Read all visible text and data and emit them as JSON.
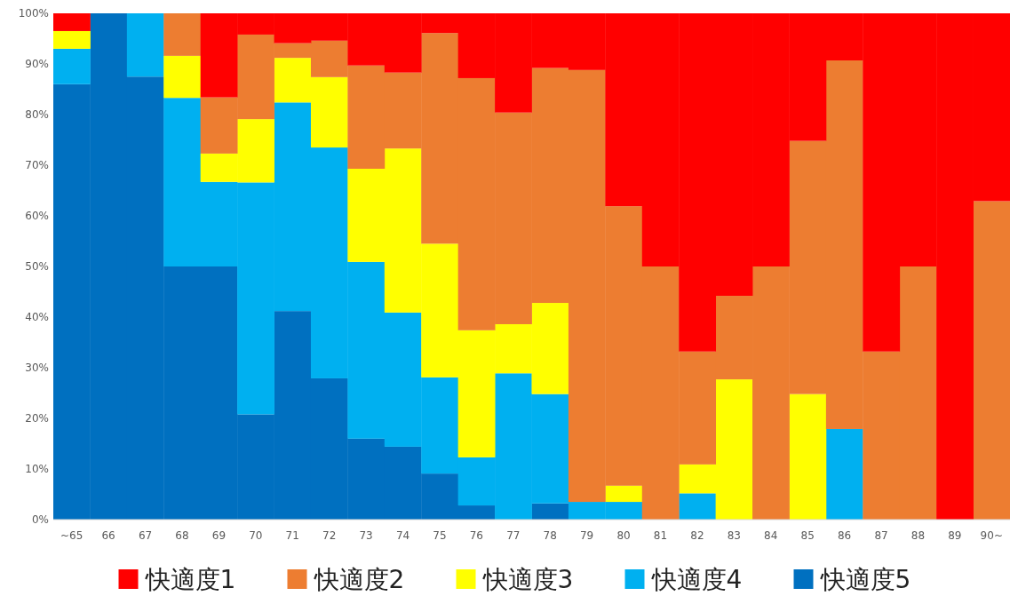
{
  "chart_data": {
    "type": "bar",
    "stacked": true,
    "legend": "bottom",
    "grid": false,
    "categories": [
      "~65",
      "66",
      "67",
      "68",
      "69",
      "70",
      "71",
      "72",
      "73",
      "74",
      "75",
      "76",
      "77",
      "78",
      "79",
      "80",
      "81",
      "82",
      "83",
      "84",
      "85",
      "86",
      "87",
      "88",
      "89",
      "90~"
    ],
    "ylim": [
      0,
      100
    ],
    "yticks": [
      {
        "value": 0,
        "label": "0%"
      },
      {
        "value": 10,
        "label": "10%"
      },
      {
        "value": 20,
        "label": "20%"
      },
      {
        "value": 30,
        "label": "30%"
      },
      {
        "value": 40,
        "label": "40%"
      },
      {
        "value": 50,
        "label": "50%"
      },
      {
        "value": 60,
        "label": "60%"
      },
      {
        "value": 70,
        "label": "70%"
      },
      {
        "value": 80,
        "label": "80%"
      },
      {
        "value": 90,
        "label": "90%"
      },
      {
        "value": 100,
        "label": "100%"
      }
    ],
    "series": [
      {
        "name": "快適度5",
        "color": "#0070c0",
        "values": [
          86,
          100,
          87.5,
          50,
          50,
          20.8,
          41.2,
          27.9,
          16,
          14.4,
          9.1,
          2.8,
          0,
          3.2,
          0,
          0,
          0,
          0,
          0,
          0,
          0,
          0,
          0,
          0,
          0,
          0
        ]
      },
      {
        "name": "快適度4",
        "color": "#00b0f0",
        "values": [
          7,
          0,
          12.5,
          33.3,
          16.7,
          45.8,
          41.2,
          45.6,
          34.9,
          26.5,
          19,
          9.5,
          28.9,
          21.6,
          3.5,
          3.5,
          0,
          5.2,
          0,
          0,
          0,
          17.9,
          0,
          0,
          0,
          0
        ]
      },
      {
        "name": "快適度3",
        "color": "#ffff00",
        "values": [
          3.5,
          0,
          0,
          8.3,
          5.6,
          12.5,
          8.8,
          13.9,
          18.4,
          32.4,
          26.4,
          25.1,
          9.7,
          18,
          0,
          3.2,
          0,
          5.7,
          27.7,
          0,
          24.8,
          0,
          0,
          0,
          0,
          0
        ]
      },
      {
        "name": "快適度2",
        "color": "#ed7d31",
        "values": [
          0,
          0,
          0,
          8.4,
          11.1,
          16.7,
          2.9,
          7.2,
          20.4,
          15,
          41.6,
          49.8,
          41.8,
          46.4,
          85.3,
          55.2,
          50,
          22.3,
          16.5,
          50,
          50,
          72.8,
          33.2,
          50,
          0,
          62.9
        ]
      },
      {
        "name": "快適度1",
        "color": "#ff0000",
        "values": [
          3.5,
          0,
          0,
          0,
          16.6,
          4.2,
          5.9,
          5.4,
          10.3,
          11.7,
          3.9,
          12.8,
          19.6,
          10.8,
          11.2,
          38.1,
          50,
          66.8,
          55.8,
          50,
          25.2,
          9.3,
          66.8,
          50,
          100,
          37.1
        ]
      }
    ]
  }
}
